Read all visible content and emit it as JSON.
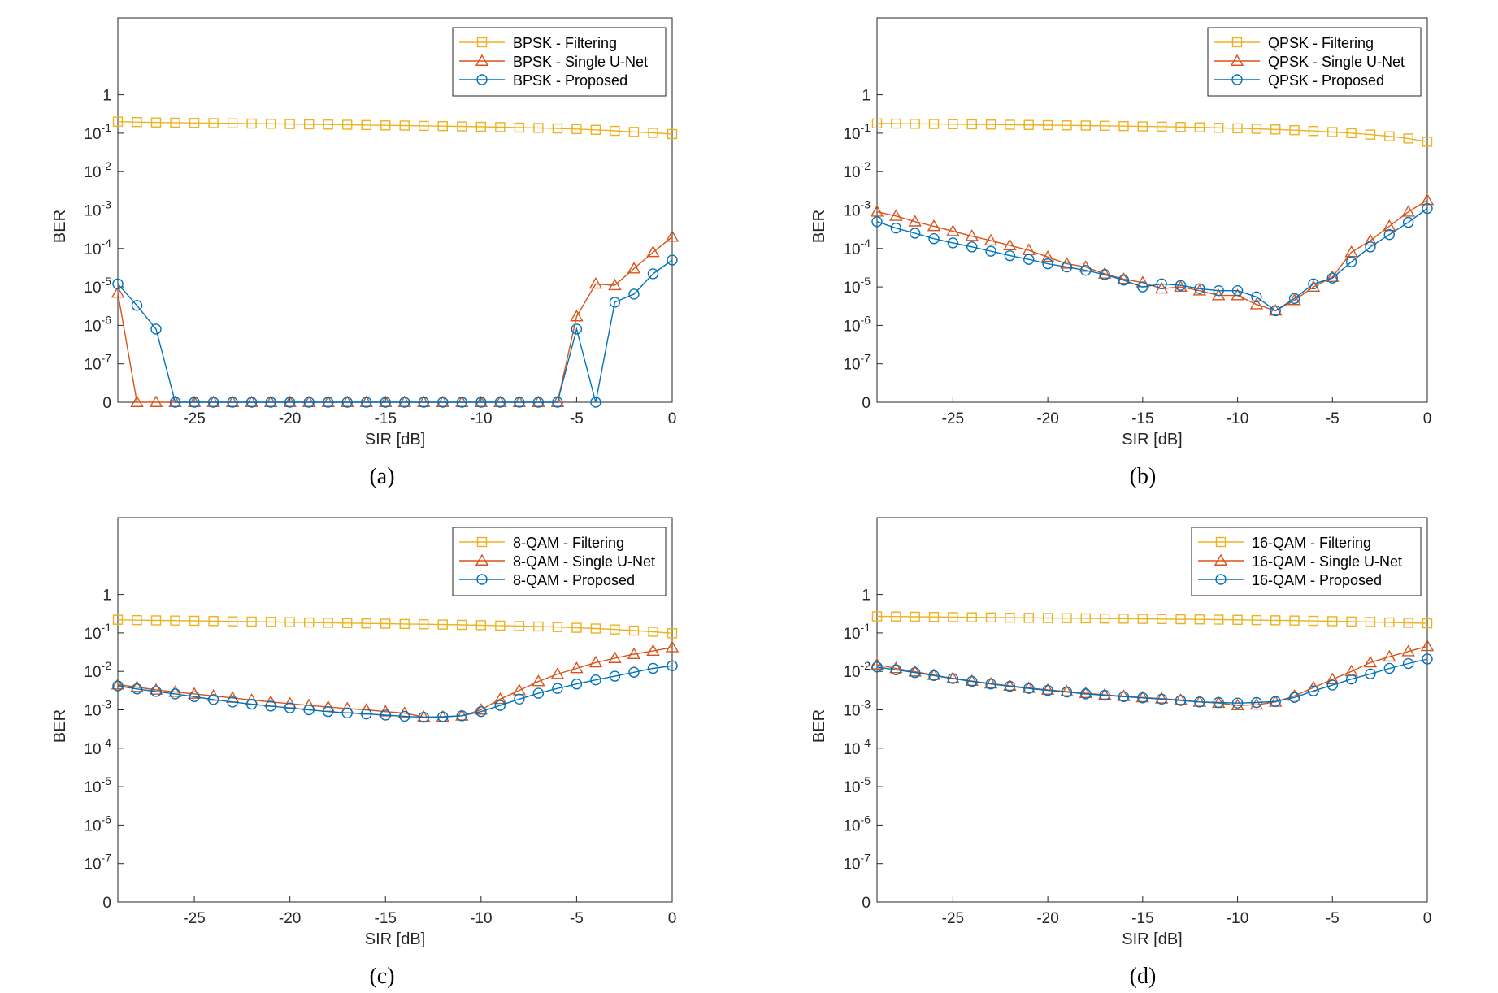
{
  "colors": {
    "filtering": "#EDB120",
    "single_unet": "#D95319",
    "proposed": "#0072BD",
    "axis": "#262626",
    "legend_border": "#262626"
  },
  "chart_data": [
    {
      "type": "line",
      "panel_label": "(a)",
      "xlabel": "SIR [dB]",
      "ylabel": "BER",
      "xlim": [
        -29,
        0
      ],
      "x_ticks": [
        -25,
        -20,
        -15,
        -10,
        -5,
        0
      ],
      "y_scale": "log with zero at bottom (0, 1e-7 ... 1e1)",
      "y_tick_labels": [
        {
          "base": "0",
          "exp": ""
        },
        {
          "base": "10",
          "exp": "-7"
        },
        {
          "base": "10",
          "exp": "-6"
        },
        {
          "base": "10",
          "exp": "-5"
        },
        {
          "base": "10",
          "exp": "-4"
        },
        {
          "base": "10",
          "exp": "-3"
        },
        {
          "base": "10",
          "exp": "-2"
        },
        {
          "base": "10",
          "exp": "-1"
        },
        {
          "base": "1",
          "exp": ""
        }
      ],
      "legend_position": "top-right",
      "x": [
        -29,
        -28,
        -27,
        -26,
        -25,
        -24,
        -23,
        -22,
        -21,
        -20,
        -19,
        -18,
        -17,
        -16,
        -15,
        -14,
        -13,
        -12,
        -11,
        -10,
        -9,
        -8,
        -7,
        -6,
        -5,
        -4,
        -3,
        -2,
        -1,
        0
      ],
      "series": [
        {
          "name": "BPSK - Filtering",
          "marker": "square",
          "color_key": "filtering",
          "values": [
            0.2,
            0.195,
            0.19,
            0.188,
            0.185,
            0.183,
            0.18,
            0.178,
            0.176,
            0.173,
            0.17,
            0.168,
            0.166,
            0.163,
            0.16,
            0.158,
            0.155,
            0.153,
            0.15,
            0.147,
            0.144,
            0.14,
            0.137,
            0.133,
            0.128,
            0.122,
            0.115,
            0.108,
            0.102,
            0.095
          ]
        },
        {
          "name": "BPSK - Single U-Net",
          "marker": "triangle",
          "color_key": "single_unet",
          "values": [
            7e-06,
            0,
            0,
            0,
            0,
            0,
            0,
            0,
            0,
            0,
            0,
            0,
            0,
            0,
            0,
            0,
            0,
            0,
            0,
            0,
            0,
            0,
            0,
            0,
            1.7e-06,
            1.2e-05,
            1.1e-05,
            3e-05,
            8e-05,
            0.0002
          ]
        },
        {
          "name": "BPSK - Proposed",
          "marker": "circle",
          "color_key": "proposed",
          "values": [
            1.2e-05,
            3.3e-06,
            8e-07,
            0,
            0,
            0,
            0,
            0,
            0,
            0,
            0,
            0,
            0,
            0,
            0,
            0,
            0,
            0,
            0,
            0,
            0,
            0,
            0,
            0,
            8e-07,
            0,
            4e-06,
            6.5e-06,
            2.2e-05,
            5e-05
          ]
        }
      ]
    },
    {
      "type": "line",
      "panel_label": "(b)",
      "xlabel": "SIR [dB]",
      "ylabel": "BER",
      "xlim": [
        -29,
        0
      ],
      "x_ticks": [
        -25,
        -20,
        -15,
        -10,
        -5,
        0
      ],
      "y_scale": "log with zero at bottom (0, 1e-7 ... 1e1)",
      "y_tick_labels": [
        {
          "base": "0",
          "exp": ""
        },
        {
          "base": "10",
          "exp": "-7"
        },
        {
          "base": "10",
          "exp": "-6"
        },
        {
          "base": "10",
          "exp": "-5"
        },
        {
          "base": "10",
          "exp": "-4"
        },
        {
          "base": "10",
          "exp": "-3"
        },
        {
          "base": "10",
          "exp": "-2"
        },
        {
          "base": "10",
          "exp": "-1"
        },
        {
          "base": "1",
          "exp": ""
        }
      ],
      "legend_position": "top-right",
      "x": [
        -29,
        -28,
        -27,
        -26,
        -25,
        -24,
        -23,
        -22,
        -21,
        -20,
        -19,
        -18,
        -17,
        -16,
        -15,
        -14,
        -13,
        -12,
        -11,
        -10,
        -9,
        -8,
        -7,
        -6,
        -5,
        -4,
        -3,
        -2,
        -1,
        0
      ],
      "series": [
        {
          "name": "QPSK - Filtering",
          "marker": "square",
          "color_key": "filtering",
          "values": [
            0.18,
            0.178,
            0.176,
            0.174,
            0.172,
            0.17,
            0.168,
            0.166,
            0.164,
            0.162,
            0.16,
            0.158,
            0.156,
            0.153,
            0.15,
            0.148,
            0.145,
            0.142,
            0.138,
            0.134,
            0.13,
            0.125,
            0.12,
            0.114,
            0.107,
            0.1,
            0.092,
            0.083,
            0.073,
            0.06
          ]
        },
        {
          "name": "QPSK - Single U-Net",
          "marker": "triangle",
          "color_key": "single_unet",
          "values": [
            0.0009,
            0.0007,
            0.0005,
            0.00038,
            0.00028,
            0.00021,
            0.00016,
            0.00012,
            9e-05,
            6e-05,
            4e-05,
            3.3e-05,
            2.2e-05,
            1.6e-05,
            1.3e-05,
            9e-06,
            1e-05,
            8e-06,
            6e-06,
            6e-06,
            3.5e-06,
            2.4e-06,
            4.5e-06,
            1e-05,
            1.8e-05,
            8e-05,
            0.00016,
            0.00038,
            0.0009,
            0.0018
          ]
        },
        {
          "name": "QPSK - Proposed",
          "marker": "circle",
          "color_key": "proposed",
          "values": [
            0.0005,
            0.00034,
            0.00025,
            0.00018,
            0.00014,
            0.00011,
            8.5e-05,
            6.5e-05,
            5.2e-05,
            4e-05,
            3.3e-05,
            2.7e-05,
            2.1e-05,
            1.5e-05,
            1e-05,
            1.2e-05,
            1.1e-05,
            9e-06,
            8e-06,
            8e-06,
            5.5e-06,
            2.4e-06,
            5e-06,
            1.2e-05,
            1.7e-05,
            4.5e-05,
            0.00011,
            0.00023,
            0.00048,
            0.0011
          ]
        }
      ]
    },
    {
      "type": "line",
      "panel_label": "(c)",
      "xlabel": "SIR [dB]",
      "ylabel": "BER",
      "xlim": [
        -29,
        0
      ],
      "x_ticks": [
        -25,
        -20,
        -15,
        -10,
        -5,
        0
      ],
      "y_scale": "log with zero at bottom (0, 1e-7 ... 1e1)",
      "y_tick_labels": [
        {
          "base": "0",
          "exp": ""
        },
        {
          "base": "10",
          "exp": "-7"
        },
        {
          "base": "10",
          "exp": "-6"
        },
        {
          "base": "10",
          "exp": "-5"
        },
        {
          "base": "10",
          "exp": "-4"
        },
        {
          "base": "10",
          "exp": "-3"
        },
        {
          "base": "10",
          "exp": "-2"
        },
        {
          "base": "10",
          "exp": "-1"
        },
        {
          "base": "1",
          "exp": ""
        }
      ],
      "legend_position": "top-right",
      "x": [
        -29,
        -28,
        -27,
        -26,
        -25,
        -24,
        -23,
        -22,
        -21,
        -20,
        -19,
        -18,
        -17,
        -16,
        -15,
        -14,
        -13,
        -12,
        -11,
        -10,
        -9,
        -8,
        -7,
        -6,
        -5,
        -4,
        -3,
        -2,
        -1,
        0
      ],
      "series": [
        {
          "name": "8-QAM - Filtering",
          "marker": "square",
          "color_key": "filtering",
          "values": [
            0.22,
            0.215,
            0.212,
            0.21,
            0.207,
            0.204,
            0.2,
            0.197,
            0.194,
            0.19,
            0.187,
            0.184,
            0.18,
            0.177,
            0.174,
            0.171,
            0.168,
            0.165,
            0.162,
            0.159,
            0.155,
            0.151,
            0.147,
            0.142,
            0.136,
            0.13,
            0.123,
            0.115,
            0.107,
            0.098
          ]
        },
        {
          "name": "8-QAM - Single U-Net",
          "marker": "triangle",
          "color_key": "single_unet",
          "values": [
            0.0045,
            0.0039,
            0.0033,
            0.0029,
            0.0026,
            0.0023,
            0.00205,
            0.0018,
            0.0016,
            0.00145,
            0.0013,
            0.00118,
            0.00108,
            0.001,
            0.0009,
            0.00082,
            0.00065,
            0.00065,
            0.0007,
            0.001,
            0.0019,
            0.0032,
            0.0055,
            0.0085,
            0.012,
            0.017,
            0.022,
            0.028,
            0.034,
            0.042
          ]
        },
        {
          "name": "8-QAM - Proposed",
          "marker": "circle",
          "color_key": "proposed",
          "values": [
            0.0042,
            0.0035,
            0.003,
            0.0026,
            0.0022,
            0.00185,
            0.0016,
            0.0014,
            0.00125,
            0.00112,
            0.001,
            0.0009,
            0.00083,
            0.00078,
            0.00073,
            0.00068,
            0.00064,
            0.00066,
            0.0007,
            0.0009,
            0.0013,
            0.0019,
            0.0027,
            0.0036,
            0.0047,
            0.006,
            0.0075,
            0.0095,
            0.012,
            0.014
          ]
        }
      ]
    },
    {
      "type": "line",
      "panel_label": "(d)",
      "xlabel": "SIR [dB]",
      "ylabel": "BER",
      "xlim": [
        -29,
        0
      ],
      "x_ticks": [
        -25,
        -20,
        -15,
        -10,
        -5,
        0
      ],
      "y_scale": "log with zero at bottom (0, 1e-7 ... 1e1)",
      "y_tick_labels": [
        {
          "base": "0",
          "exp": ""
        },
        {
          "base": "10",
          "exp": "-7"
        },
        {
          "base": "10",
          "exp": "-6"
        },
        {
          "base": "10",
          "exp": "-5"
        },
        {
          "base": "10",
          "exp": "-4"
        },
        {
          "base": "10",
          "exp": "-3"
        },
        {
          "base": "10",
          "exp": "-2"
        },
        {
          "base": "10",
          "exp": "-1"
        },
        {
          "base": "1",
          "exp": ""
        }
      ],
      "legend_position": "top-right",
      "x": [
        -29,
        -28,
        -27,
        -26,
        -25,
        -24,
        -23,
        -22,
        -21,
        -20,
        -19,
        -18,
        -17,
        -16,
        -15,
        -14,
        -13,
        -12,
        -11,
        -10,
        -9,
        -8,
        -7,
        -6,
        -5,
        -4,
        -3,
        -2,
        -1,
        0
      ],
      "series": [
        {
          "name": "16-QAM - Filtering",
          "marker": "square",
          "color_key": "filtering",
          "values": [
            0.27,
            0.267,
            0.264,
            0.261,
            0.258,
            0.255,
            0.252,
            0.25,
            0.247,
            0.244,
            0.242,
            0.24,
            0.237,
            0.235,
            0.232,
            0.23,
            0.227,
            0.225,
            0.222,
            0.219,
            0.216,
            0.213,
            0.21,
            0.206,
            0.202,
            0.198,
            0.193,
            0.188,
            0.183,
            0.178
          ]
        },
        {
          "name": "16-QAM - Single U-Net",
          "marker": "triangle",
          "color_key": "single_unet",
          "values": [
            0.015,
            0.012,
            0.0098,
            0.008,
            0.0066,
            0.0056,
            0.0048,
            0.0042,
            0.0037,
            0.0033,
            0.003,
            0.0027,
            0.00245,
            0.00225,
            0.0021,
            0.00195,
            0.0018,
            0.0016,
            0.0015,
            0.0013,
            0.00135,
            0.0016,
            0.0023,
            0.0038,
            0.0062,
            0.01,
            0.017,
            0.024,
            0.033,
            0.045
          ]
        },
        {
          "name": "16-QAM - Proposed",
          "marker": "circle",
          "color_key": "proposed",
          "values": [
            0.013,
            0.011,
            0.0093,
            0.0078,
            0.0065,
            0.0055,
            0.0047,
            0.0041,
            0.0036,
            0.0032,
            0.0029,
            0.0026,
            0.0024,
            0.0022,
            0.00205,
            0.0019,
            0.00175,
            0.0016,
            0.00155,
            0.0015,
            0.00155,
            0.00165,
            0.0021,
            0.0031,
            0.0044,
            0.0063,
            0.0086,
            0.012,
            0.016,
            0.021
          ]
        }
      ]
    }
  ]
}
